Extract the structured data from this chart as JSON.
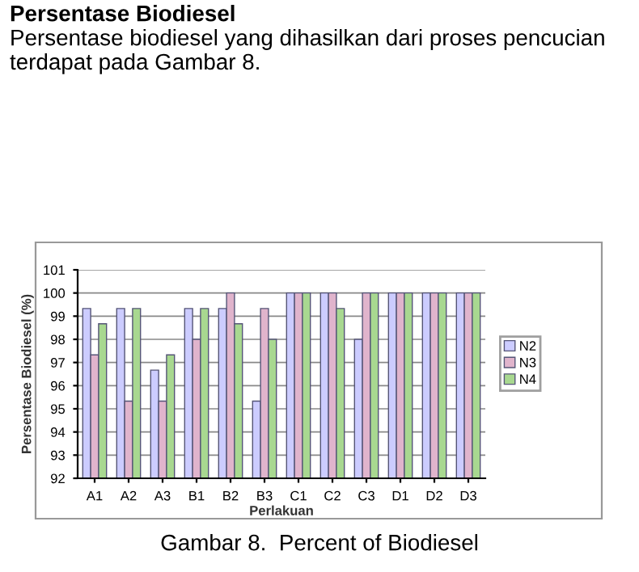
{
  "chart_data": {
    "type": "bar",
    "title": "Persentase Biodiesel",
    "subtitle": "Persentase biodiesel yang dihasilkan dari proses pencucian terdapat pada Gambar 8.",
    "xlabel": "Perlakuan",
    "ylabel": "Persentase Biodiesel (%)",
    "categories": [
      "A1",
      "A2",
      "A3",
      "B1",
      "B2",
      "B3",
      "C1",
      "C2",
      "C3",
      "D1",
      "D2",
      "D3"
    ],
    "series": [
      {
        "name": "N2",
        "color": "#ccccff",
        "values": [
          99.33,
          99.33,
          96.67,
          99.33,
          99.33,
          95.33,
          100,
          100,
          98,
          100,
          100,
          100
        ]
      },
      {
        "name": "N3",
        "color": "#e0b4cc",
        "values": [
          97.33,
          95.33,
          95.33,
          98,
          100,
          99.33,
          100,
          100,
          100,
          100,
          100,
          100
        ]
      },
      {
        "name": "N4",
        "color": "#a8d890",
        "values": [
          98.67,
          99.33,
          97.33,
          99.33,
          98.67,
          98,
          100,
          99.33,
          100,
          100,
          100,
          100
        ]
      }
    ],
    "ylim": [
      92,
      101
    ],
    "yticks": [
      92,
      93,
      94,
      95,
      96,
      97,
      98,
      99,
      100,
      101
    ],
    "grid": "y",
    "legend": "right",
    "annotations": [
      "Gambar 8.  Percent of Biodiesel"
    ]
  }
}
